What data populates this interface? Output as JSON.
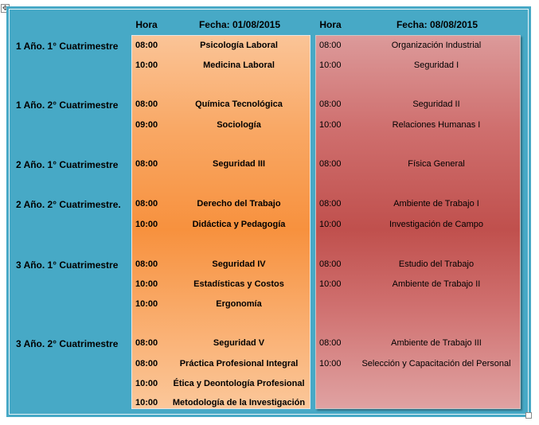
{
  "headers": {
    "hora_1": "Hora",
    "fecha_1": "Fecha: 01/08/2015",
    "hora_2": "Hora",
    "fecha_2": "Fecha: 08/08/2015"
  },
  "groups": [
    "1 Año. 1° Cuatrimestre",
    "1 Año. 2° Cuatrimestre",
    "2 Año. 1° Cuatrimestre",
    "2 Año. 2° Cuatrimestre.",
    "3 Año. 1° Cuatrimestre",
    "3 Año. 2° Cuatrimestre"
  ],
  "rows": [
    {
      "h1": "08:00",
      "s1": "Psicología Laboral",
      "h2": "08:00",
      "s2": "Organización Industrial"
    },
    {
      "h1": "10:00",
      "s1": "Medicina Laboral",
      "h2": "10:00",
      "s2": "Seguridad I"
    },
    {
      "h1": "08:00",
      "s1": "Química Tecnológica",
      "h2": "08:00",
      "s2": "Seguridad II"
    },
    {
      "h1": "09:00",
      "s1": "Sociología",
      "h2": "10:00",
      "s2": "Relaciones Humanas I"
    },
    {
      "h1": "08:00",
      "s1": "Seguridad III",
      "h2": "08:00",
      "s2": "Física General"
    },
    {
      "h1": "08:00",
      "s1": "Derecho del Trabajo",
      "h2": "08:00",
      "s2": "Ambiente de Trabajo I"
    },
    {
      "h1": "10:00",
      "s1": "Didáctica y Pedagogía",
      "h2": "10:00",
      "s2": "Investigación de Campo"
    },
    {
      "h1": "08:00",
      "s1": "Seguridad IV",
      "h2": "08:00",
      "s2": "Estudio del Trabajo"
    },
    {
      "h1": "10:00",
      "s1": "Estadísticas y Costos",
      "h2": "10:00",
      "s2": "Ambiente de Trabajo II"
    },
    {
      "h1": "10:00",
      "s1": "Ergonomía",
      "h2": "",
      "s2": ""
    },
    {
      "h1": "08:00",
      "s1": "Seguridad V",
      "h2": "08:00",
      "s2": "Ambiente de Trabajo III"
    },
    {
      "h1": "08:00",
      "s1": "Práctica Profesional Integral",
      "h2": "10:00",
      "s2": "Selección y Capacitación del Personal"
    },
    {
      "h1": "10:00",
      "s1": "Ética y Deontología Profesional",
      "h2": "",
      "s2": ""
    },
    {
      "h1": "10:00",
      "s1": "Metodología de la Investigación",
      "h2": "",
      "s2": ""
    }
  ]
}
